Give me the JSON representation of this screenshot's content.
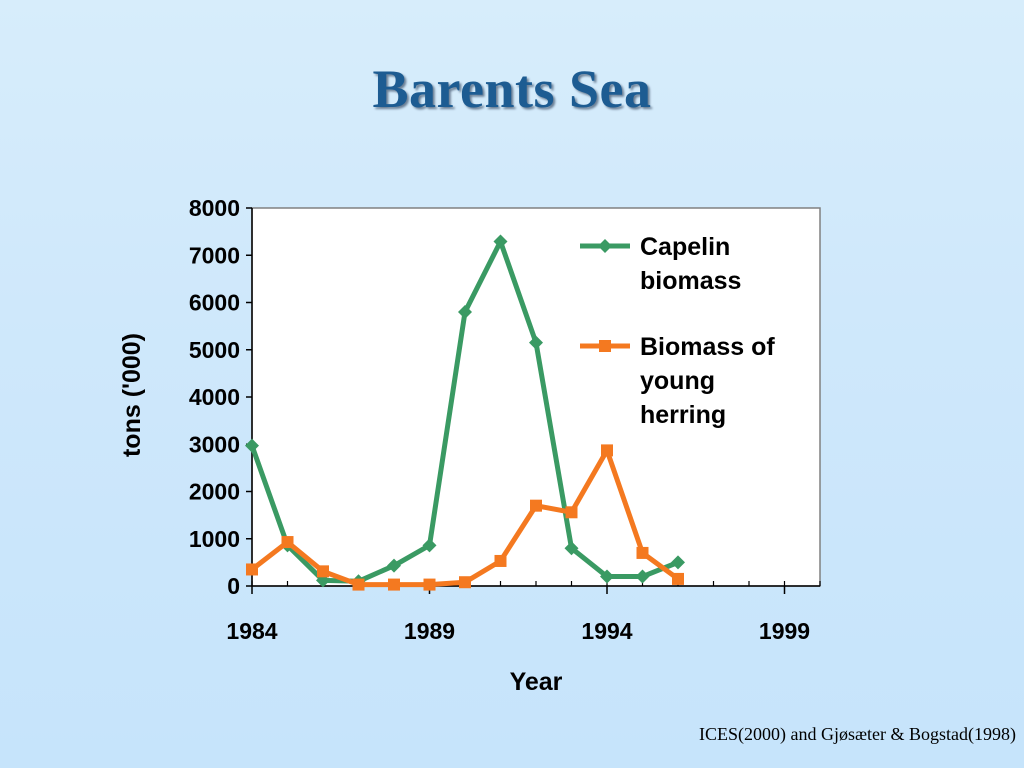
{
  "slide": {
    "title": "Barents Sea",
    "citation": "ICES(2000) and Gjøsæter & Bogstad(1998)"
  },
  "chart_data": {
    "type": "line",
    "title": "",
    "xlabel": "Year",
    "ylabel": "tons ('000)",
    "xlim": [
      1984,
      2000
    ],
    "ylim": [
      0,
      8000
    ],
    "x_ticks": [
      1984,
      1989,
      1994,
      1999
    ],
    "y_ticks": [
      0,
      1000,
      2000,
      3000,
      4000,
      5000,
      6000,
      7000,
      8000
    ],
    "grid": false,
    "legend_position": "top-right (inside plot)",
    "series": [
      {
        "name": "Capelin biomass",
        "legend_lines": [
          "Capelin",
          "biomass"
        ],
        "color": "#3a9a63",
        "marker": "diamond",
        "x": [
          1984,
          1985,
          1986,
          1987,
          1988,
          1989,
          1990,
          1991,
          1992,
          1993,
          1994,
          1995,
          1996
        ],
        "y": [
          2970,
          860,
          120,
          100,
          430,
          860,
          5800,
          7290,
          5150,
          800,
          200,
          200,
          500
        ]
      },
      {
        "name": "Biomass of young herring",
        "legend_lines": [
          "Biomass of",
          "young",
          "herring"
        ],
        "color": "#f47920",
        "marker": "square",
        "x": [
          1984,
          1985,
          1986,
          1987,
          1988,
          1989,
          1990,
          1991,
          1992,
          1993,
          1994,
          1995,
          1996
        ],
        "y": [
          350,
          930,
          310,
          30,
          30,
          30,
          80,
          530,
          1700,
          1560,
          2870,
          700,
          150
        ]
      }
    ]
  }
}
